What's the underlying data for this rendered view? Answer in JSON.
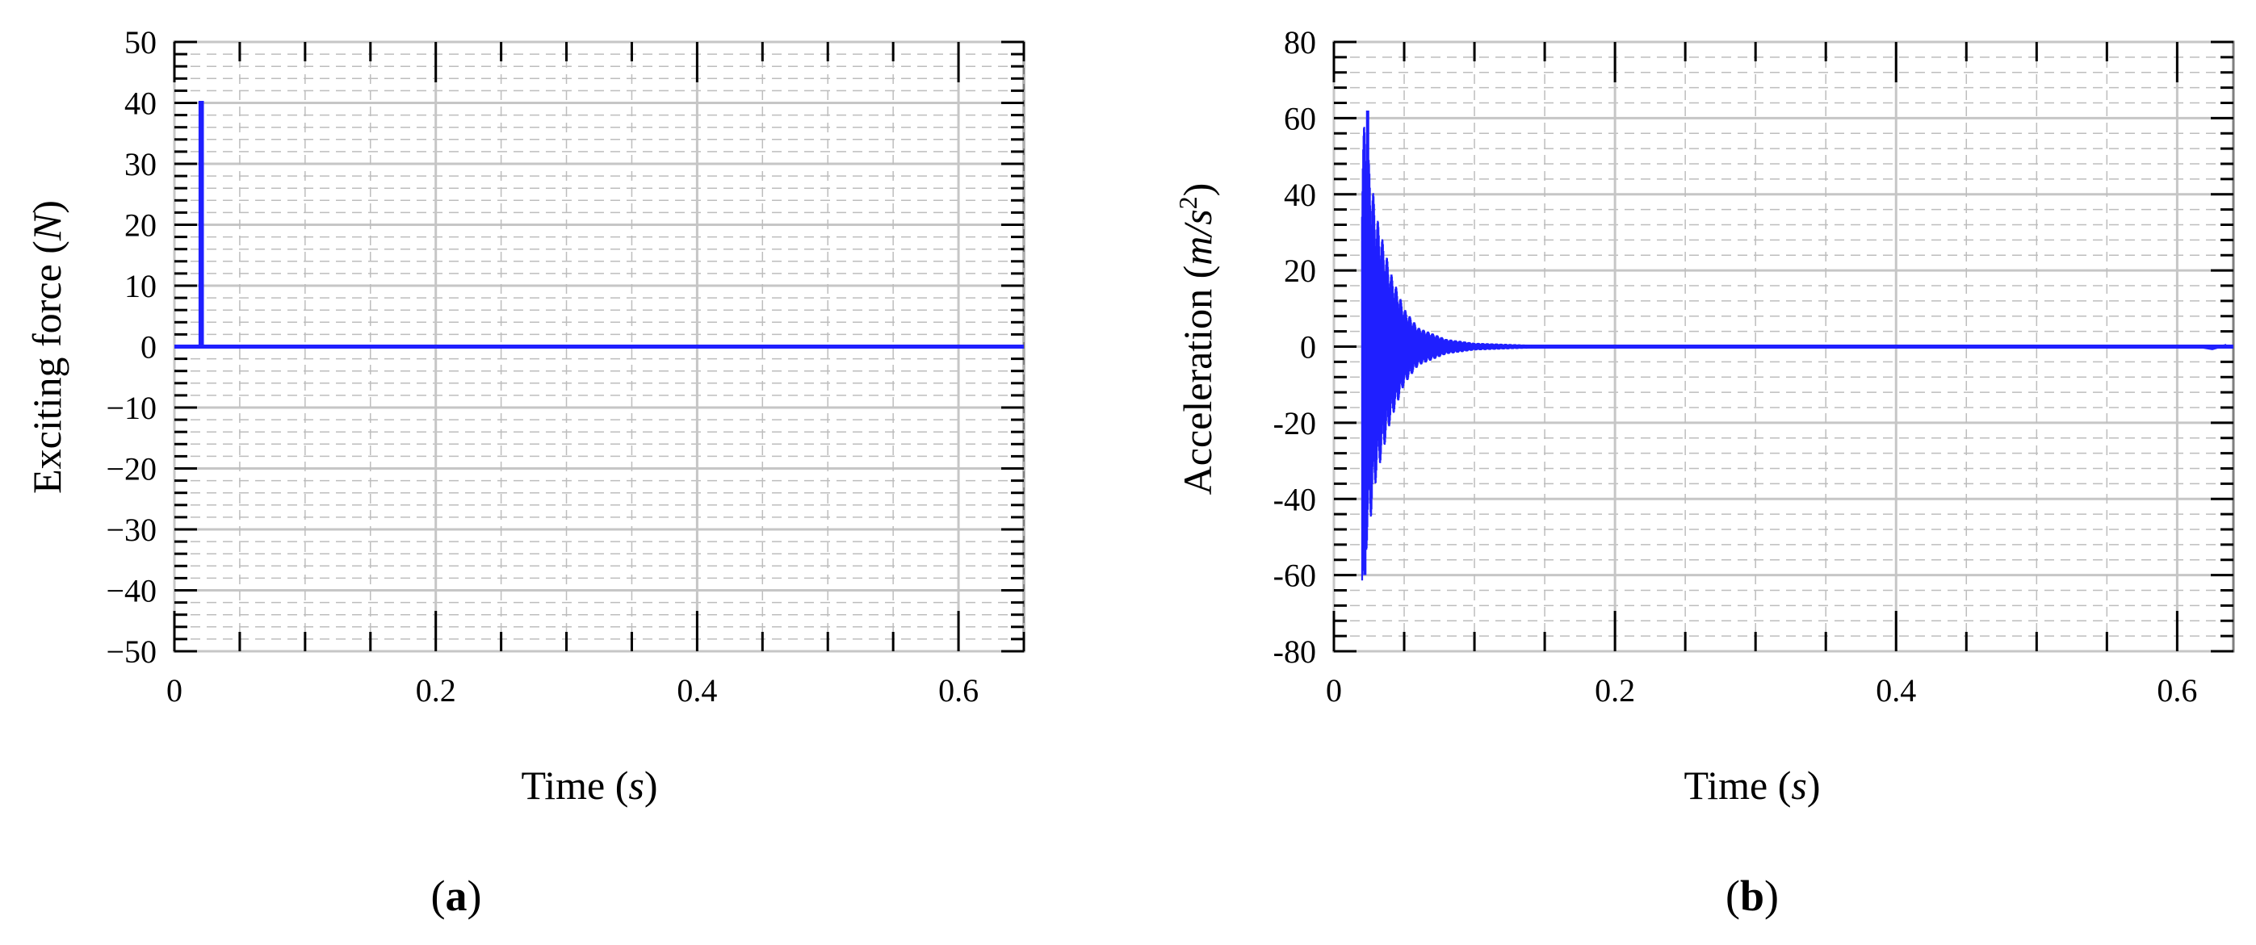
{
  "chart_data": [
    {
      "type": "line",
      "panel_label": "(a)",
      "panel_letter": "a",
      "xlabel": "Time (s)",
      "xlabel_main": "Time (",
      "xlabel_unit": "s",
      "ylabel": "Exciting force (N)",
      "ylabel_main": "Exciting force (",
      "ylabel_unit": "N",
      "xlim": [
        0,
        0.65
      ],
      "ylim": [
        -50,
        50
      ],
      "xticks": [
        0,
        0.2,
        0.4,
        0.6
      ],
      "xtick_labels": [
        "0",
        "0.2",
        "0.4",
        "0.6"
      ],
      "yticks": [
        50,
        40,
        30,
        20,
        10,
        0,
        -10,
        -20,
        -30,
        -40,
        -50
      ],
      "ytick_labels": [
        "50",
        "40",
        "30",
        "20",
        "10",
        "0",
        "−10",
        "−20",
        "−30",
        "−40",
        "−50"
      ],
      "grid": true,
      "color": "#1f1fff",
      "series": [
        {
          "x": [
            0,
            0.02,
            0.02,
            0.021,
            0.021,
            0.65
          ],
          "y": [
            0,
            0,
            40,
            40,
            0,
            0
          ]
        }
      ]
    },
    {
      "type": "line",
      "panel_label": "(b)",
      "panel_letter": "b",
      "xlabel": "Time (s)",
      "xlabel_main": "Time (",
      "xlabel_unit": "s",
      "ylabel": "Acceleration (m/s2)",
      "ylabel_main": "Acceleration (",
      "ylabel_unit": "m/s",
      "ylabel_sup": "2",
      "xlim": [
        0,
        0.64
      ],
      "ylim": [
        -80,
        80
      ],
      "xticks": [
        0,
        0.2,
        0.4,
        0.6
      ],
      "xtick_labels": [
        "0",
        "0.2",
        "0.4",
        "0.6"
      ],
      "yticks": [
        80,
        60,
        40,
        20,
        0,
        -20,
        -40,
        -60,
        -80
      ],
      "ytick_labels": [
        "80",
        "60",
        "40",
        "20",
        "0",
        "-20",
        "-40",
        "-60",
        "-80"
      ],
      "grid": true,
      "color": "#1f1fff",
      "series": [
        {
          "description_free_response": true,
          "impulse_time": 0.02,
          "peak_positive": 62,
          "peak_negative": -60,
          "decay_end_time": 0.14,
          "x": [
            0.02,
            0.03,
            0.04,
            0.05,
            0.06,
            0.08,
            0.1,
            0.14,
            0.64
          ],
          "y_envelope": [
            62,
            35,
            20,
            10,
            5,
            2,
            1,
            0.5,
            0
          ]
        }
      ]
    }
  ]
}
